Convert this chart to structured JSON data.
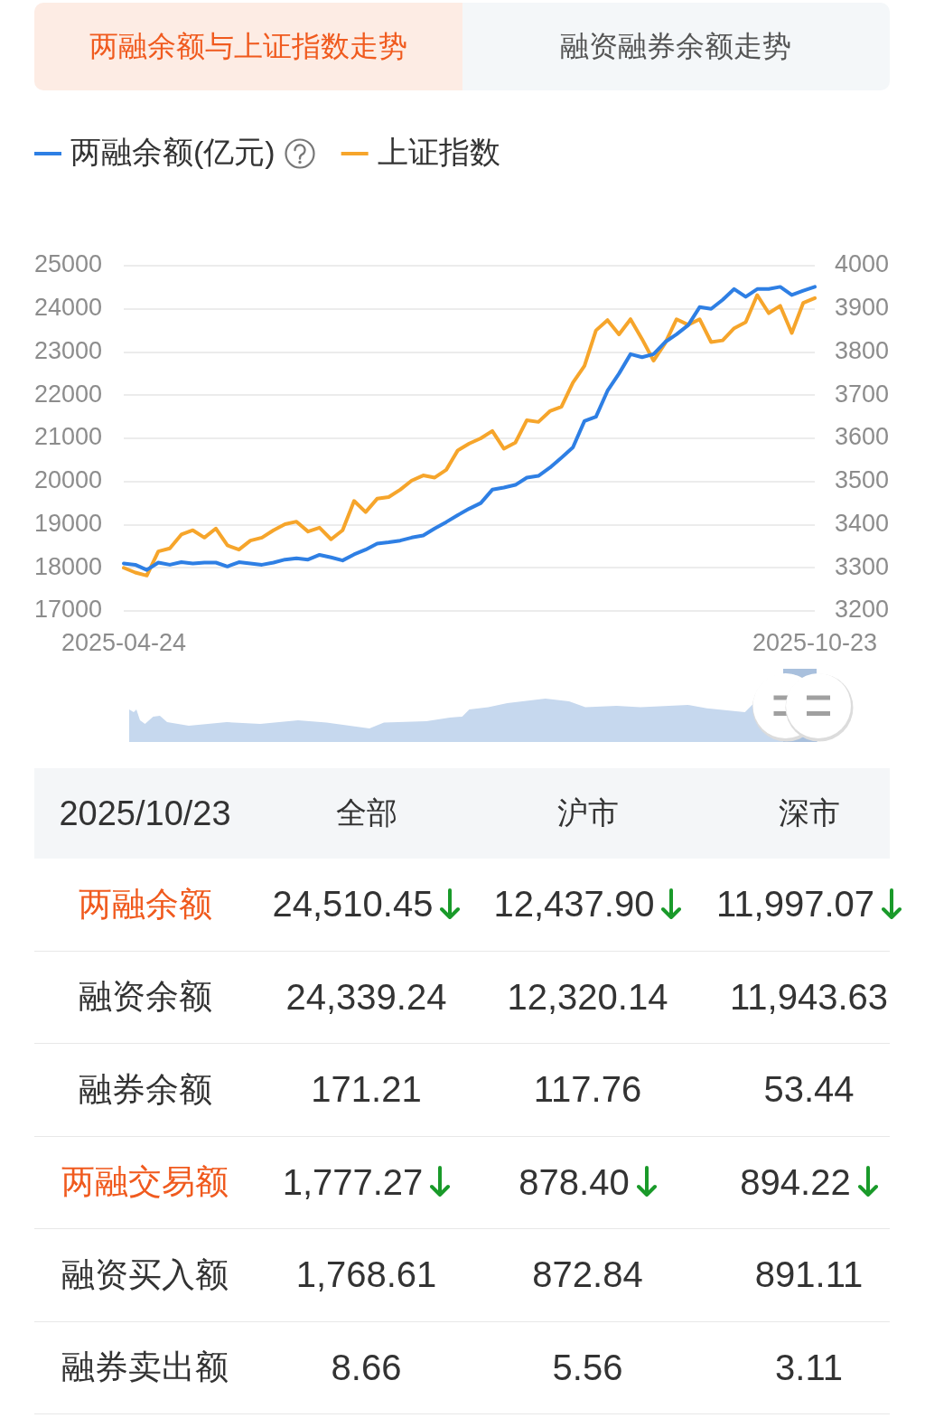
{
  "chart_data": [
    {
      "type": "other",
      "annotations": [
        "两融余额与上证指数走势",
        "融资融券余额走势"
      ]
    },
    {
      "type": "line",
      "legend": "top left",
      "grid": "y",
      "categories": [
        "2025-04-24",
        null,
        null,
        null,
        null,
        null,
        null,
        null,
        null,
        null,
        null,
        null,
        null,
        null,
        null,
        null,
        null,
        null,
        null,
        null,
        null,
        null,
        null,
        null,
        null,
        null,
        null,
        null,
        null,
        null,
        null,
        null,
        null,
        null,
        null,
        null,
        null,
        null,
        null,
        null,
        null,
        null,
        null,
        null,
        null,
        null,
        null,
        null,
        null,
        null,
        null,
        null,
        null,
        null,
        null,
        null,
        null,
        null,
        null,
        null,
        "2025-10-23"
      ],
      "series": [
        {
          "name": "两融余额(亿元)",
          "color": "#2e7fe4",
          "values": [
            18100,
            18070,
            17950,
            18120,
            18070,
            18130,
            18100,
            18120,
            18120,
            18030,
            18130,
            18100,
            18070,
            18120,
            18190,
            18220,
            18190,
            18300,
            18240,
            18170,
            18310,
            18420,
            18560,
            18590,
            18630,
            18700,
            18750,
            18910,
            19060,
            19220,
            19370,
            19500,
            19810,
            19860,
            19920,
            20090,
            20130,
            20320,
            20550,
            20790,
            21400,
            21500,
            22100,
            22500,
            22950,
            22880,
            22950,
            23230,
            23410,
            23620,
            24040,
            24000,
            24210,
            24460,
            24280,
            24460,
            24460,
            24510,
            24320,
            24420,
            24510
          ]
        },
        {
          "name": "上证指数",
          "color": "#f6a52b",
          "axis": "y2",
          "values": [
            3300,
            3289,
            3282,
            3338,
            3345,
            3377,
            3387,
            3370,
            3391,
            3352,
            3342,
            3363,
            3370,
            3387,
            3401,
            3407,
            3384,
            3393,
            3366,
            3387,
            3455,
            3429,
            3460,
            3464,
            3481,
            3502,
            3514,
            3509,
            3527,
            3572,
            3588,
            3600,
            3617,
            3576,
            3590,
            3642,
            3638,
            3663,
            3673,
            3729,
            3768,
            3850,
            3874,
            3841,
            3876,
            3830,
            3780,
            3820,
            3876,
            3863,
            3876,
            3823,
            3827,
            3855,
            3869,
            3932,
            3890,
            3907,
            3844,
            3914,
            3925
          ]
        }
      ],
      "ylim": [
        17000,
        25000
      ],
      "yticks": [
        17000,
        18000,
        19000,
        20000,
        21000,
        22000,
        23000,
        24000,
        25000
      ],
      "y2lim": [
        3200,
        4000
      ],
      "y2ticks": [
        3200,
        3300,
        3400,
        3500,
        3600,
        3700,
        3800,
        3900,
        4000
      ]
    },
    {
      "type": "other",
      "title": "2025/10/23",
      "categories": [
        "全部",
        "沪市",
        "深市"
      ],
      "y_categories": [
        "两融余额",
        "融资余额",
        "融券余额",
        "两融交易额",
        "融资买入额",
        "融券卖出额"
      ],
      "cell_labels": [
        [
          "24,510.45",
          "12,437.90",
          "11,997.07"
        ],
        [
          "24,339.24",
          "12,320.14",
          "11,943.63"
        ],
        [
          "171.21",
          "117.76",
          "53.44"
        ],
        [
          "1,777.27",
          "878.40",
          "894.22"
        ],
        [
          "1,768.61",
          "872.84",
          "891.11"
        ],
        [
          "8.66",
          "5.56",
          "3.11"
        ]
      ]
    }
  ]
}
